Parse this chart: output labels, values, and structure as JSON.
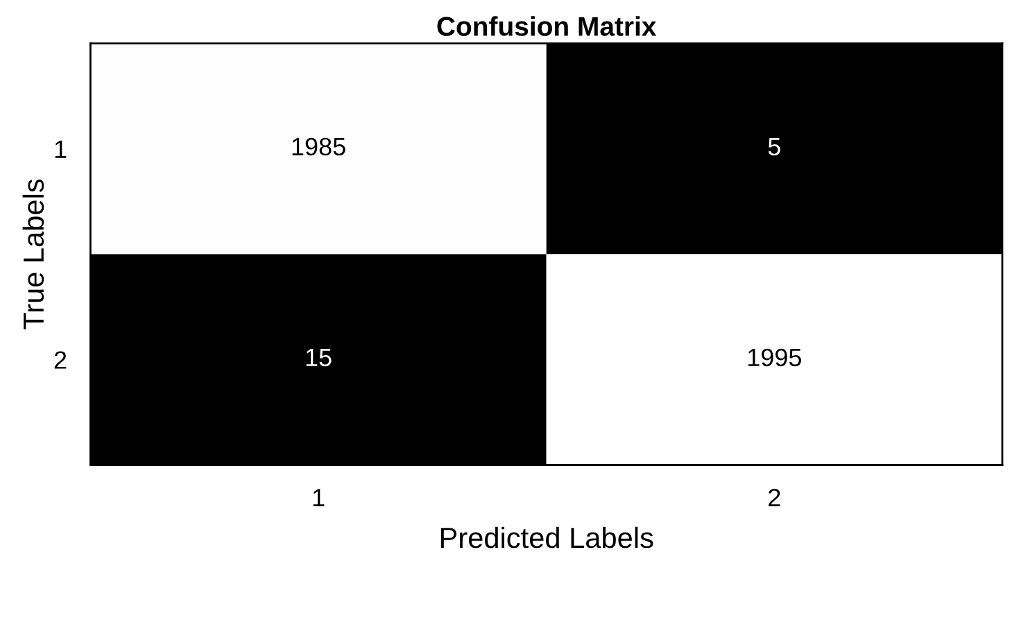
{
  "chart_data": {
    "type": "heatmap",
    "title": "Confusion Matrix",
    "xlabel": "Predicted Labels",
    "ylabel": "True Labels",
    "categories": [
      "1",
      "2"
    ],
    "y_categories": [
      "1",
      "2"
    ],
    "cells": [
      [
        1985,
        5
      ],
      [
        15,
        1995
      ]
    ],
    "data_labels": true
  }
}
